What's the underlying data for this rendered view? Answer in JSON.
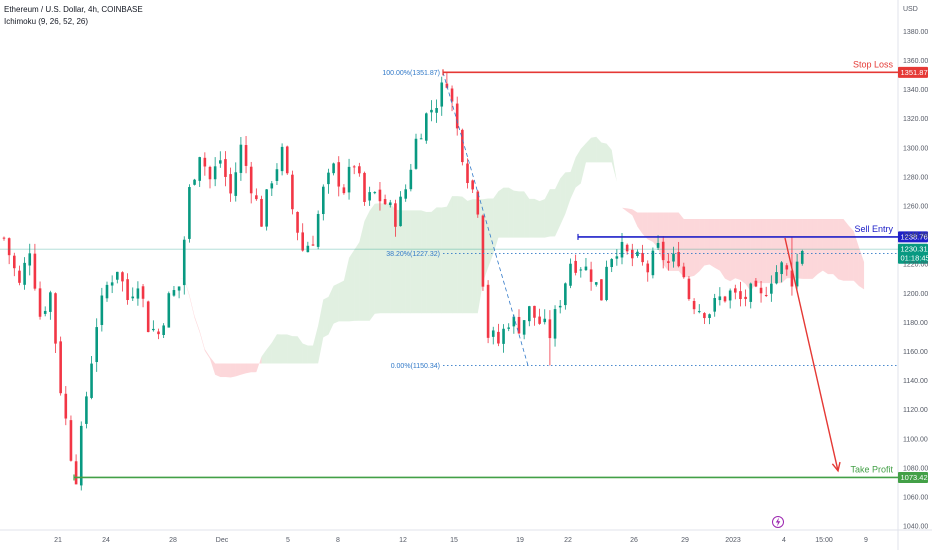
{
  "header": {
    "symbol": "Ethereum / U.S. Dollar, 4h, COINBASE",
    "indicator": "Ichimoku (9, 26, 52, 26)"
  },
  "chart_data": {
    "type": "candlestick",
    "currency": "USD",
    "ylim": [
      1035,
      1395
    ],
    "y_ticks": [
      1040,
      1060,
      1080,
      1100,
      1120,
      1140,
      1160,
      1180,
      1200,
      1220,
      1240,
      1260,
      1280,
      1300,
      1320,
      1340,
      1360,
      1380
    ],
    "x_ticks": [
      "21",
      "24",
      "28",
      "Dec",
      "5",
      "8",
      "12",
      "15",
      "19",
      "22",
      "26",
      "29",
      "2023",
      "4",
      "15:00",
      "9"
    ],
    "close_path": [
      [
        0,
        1238
      ],
      [
        3,
        1205
      ],
      [
        5,
        1232
      ],
      [
        7,
        1185
      ],
      [
        9,
        1200
      ],
      [
        11,
        1135
      ],
      [
        13,
        1090
      ],
      [
        14,
        1075
      ],
      [
        16,
        1130
      ],
      [
        18,
        1180
      ],
      [
        20,
        1205
      ],
      [
        22,
        1218
      ],
      [
        24,
        1196
      ],
      [
        26,
        1210
      ],
      [
        28,
        1178
      ],
      [
        30,
        1172
      ],
      [
        32,
        1196
      ],
      [
        34,
        1205
      ],
      [
        36,
        1270
      ],
      [
        38,
        1298
      ],
      [
        40,
        1278
      ],
      [
        42,
        1292
      ],
      [
        44,
        1268
      ],
      [
        46,
        1300
      ],
      [
        48,
        1275
      ],
      [
        50,
        1250
      ],
      [
        52,
        1280
      ],
      [
        54,
        1296
      ],
      [
        56,
        1258
      ],
      [
        58,
        1230
      ],
      [
        60,
        1238
      ],
      [
        62,
        1270
      ],
      [
        64,
        1285
      ],
      [
        66,
        1272
      ],
      [
        68,
        1290
      ],
      [
        70,
        1262
      ],
      [
        72,
        1268
      ],
      [
        74,
        1262
      ],
      [
        76,
        1252
      ],
      [
        78,
        1272
      ],
      [
        80,
        1305
      ],
      [
        82,
        1322
      ],
      [
        84,
        1332
      ],
      [
        86,
        1348
      ],
      [
        88,
        1312
      ],
      [
        90,
        1282
      ],
      [
        92,
        1260
      ],
      [
        93,
        1210
      ],
      [
        94,
        1172
      ],
      [
        96,
        1166
      ],
      [
        98,
        1182
      ],
      [
        100,
        1178
      ],
      [
        102,
        1188
      ],
      [
        104,
        1180
      ],
      [
        106,
        1172
      ],
      [
        108,
        1196
      ],
      [
        110,
        1222
      ],
      [
        112,
        1220
      ],
      [
        114,
        1213
      ],
      [
        116,
        1198
      ],
      [
        117,
        1222
      ],
      [
        119,
        1232
      ],
      [
        121,
        1226
      ],
      [
        123,
        1222
      ],
      [
        125,
        1216
      ],
      [
        127,
        1230
      ],
      [
        129,
        1220
      ],
      [
        131,
        1225
      ],
      [
        133,
        1198
      ],
      [
        135,
        1190
      ],
      [
        137,
        1188
      ],
      [
        139,
        1196
      ],
      [
        141,
        1200
      ],
      [
        143,
        1195
      ],
      [
        145,
        1200
      ],
      [
        147,
        1196
      ],
      [
        149,
        1212
      ],
      [
        151,
        1218
      ],
      [
        153,
        1210
      ],
      [
        155,
        1232
      ]
    ],
    "levels": [
      {
        "name": "Stop Loss",
        "value": 1351.87,
        "badge": "1351.87",
        "color": "#e53935"
      },
      {
        "name": "Sell Entry",
        "value": 1238.76,
        "badge": "1238.76",
        "color": "#1e20c8"
      },
      {
        "name": "Take Profit",
        "value": 1073.42,
        "badge": "1073.42",
        "color": "#43a047"
      }
    ],
    "current_price": {
      "value": 1230.31,
      "badge": "1230.31",
      "countdown": "01:18:45",
      "color": "#089981"
    },
    "fibonacci": [
      {
        "label": "100.00%(1351.87)",
        "value": 1351.87
      },
      {
        "label": "38.20%(1227.32)",
        "value": 1227.32
      },
      {
        "label": "0.00%(1150.34)",
        "value": 1150.34
      }
    ],
    "projection": {
      "from": 1238,
      "to": 1078
    }
  }
}
